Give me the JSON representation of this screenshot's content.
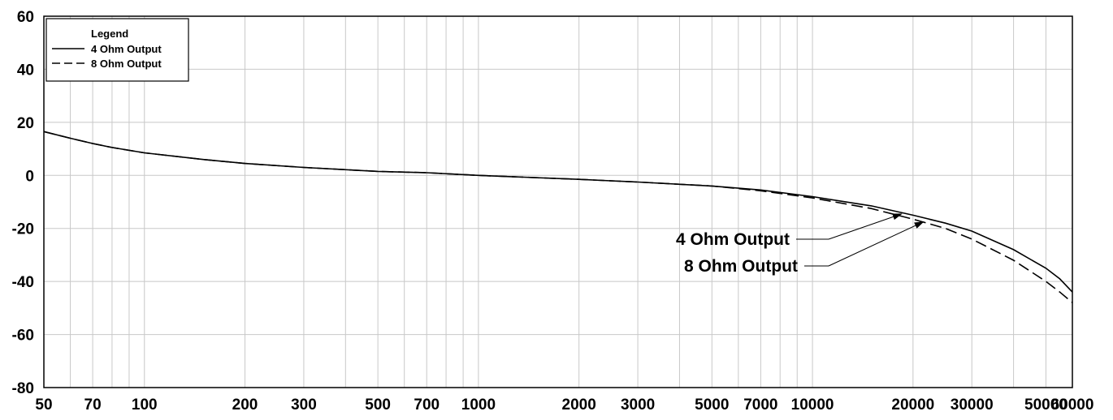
{
  "chart_data": {
    "type": "line",
    "title": "",
    "xlabel": "",
    "ylabel": "",
    "x_scale": "log",
    "xlim": [
      50,
      60000
    ],
    "ylim": [
      -80,
      60
    ],
    "grid": true,
    "x_ticks": [
      50,
      70,
      100,
      200,
      300,
      500,
      700,
      1000,
      2000,
      3000,
      5000,
      7000,
      10000,
      20000,
      30000,
      50000,
      60000
    ],
    "x_tick_labels": [
      "50",
      "70",
      "100",
      "200",
      "300",
      "500",
      "700",
      "1000",
      "2000",
      "3000",
      "5000",
      "7000",
      "10000",
      "20000",
      "30000",
      "50000",
      "60000"
    ],
    "x_gridlines": [
      50,
      60,
      70,
      80,
      90,
      100,
      200,
      300,
      400,
      500,
      600,
      700,
      800,
      900,
      1000,
      2000,
      3000,
      4000,
      5000,
      6000,
      7000,
      8000,
      9000,
      10000,
      20000,
      30000,
      40000,
      50000,
      60000
    ],
    "y_ticks": [
      60,
      40,
      20,
      0,
      -20,
      -40,
      -60,
      -80
    ],
    "y_tick_labels": [
      "60",
      "40",
      "20",
      "0",
      "-20",
      "-40",
      "-60",
      "-80"
    ],
    "legend": {
      "title": "Legend",
      "position": "top-left",
      "entries": [
        {
          "label": "4 Ohm Output",
          "style": "solid"
        },
        {
          "label": "8 Ohm Output",
          "style": "dashed"
        }
      ]
    },
    "series": [
      {
        "name": "4 Ohm Output",
        "style": "solid",
        "color": "#000000",
        "x": [
          50,
          60,
          70,
          80,
          100,
          150,
          200,
          300,
          500,
          700,
          1000,
          2000,
          3000,
          5000,
          7000,
          10000,
          15000,
          20000,
          25000,
          30000,
          40000,
          50000,
          55000,
          60000
        ],
        "y": [
          16.5,
          14,
          12,
          10.5,
          8.5,
          6,
          4.5,
          3,
          1.5,
          1,
          0,
          -1.5,
          -2.5,
          -4,
          -5.5,
          -8,
          -11.5,
          -15,
          -18,
          -21,
          -28,
          -35,
          -39,
          -44
        ]
      },
      {
        "name": "8 Ohm Output",
        "style": "dashed",
        "color": "#000000",
        "x": [
          50,
          60,
          70,
          80,
          100,
          150,
          200,
          300,
          500,
          700,
          1000,
          2000,
          3000,
          5000,
          7000,
          10000,
          15000,
          20000,
          25000,
          30000,
          40000,
          50000,
          55000,
          60000
        ],
        "y": [
          16.5,
          14,
          12,
          10.5,
          8.5,
          6,
          4.5,
          3,
          1.5,
          1,
          0,
          -1.5,
          -2.5,
          -4,
          -5.8,
          -8.5,
          -12.5,
          -16.5,
          -20,
          -24,
          -32,
          -40,
          -44,
          -48
        ]
      }
    ],
    "annotations": [
      {
        "text": "4 Ohm Output",
        "points_to": {
          "x": 18500,
          "y": -14.5
        }
      },
      {
        "text": "8 Ohm Output",
        "points_to": {
          "x": 21500,
          "y": -17.5
        }
      }
    ]
  }
}
